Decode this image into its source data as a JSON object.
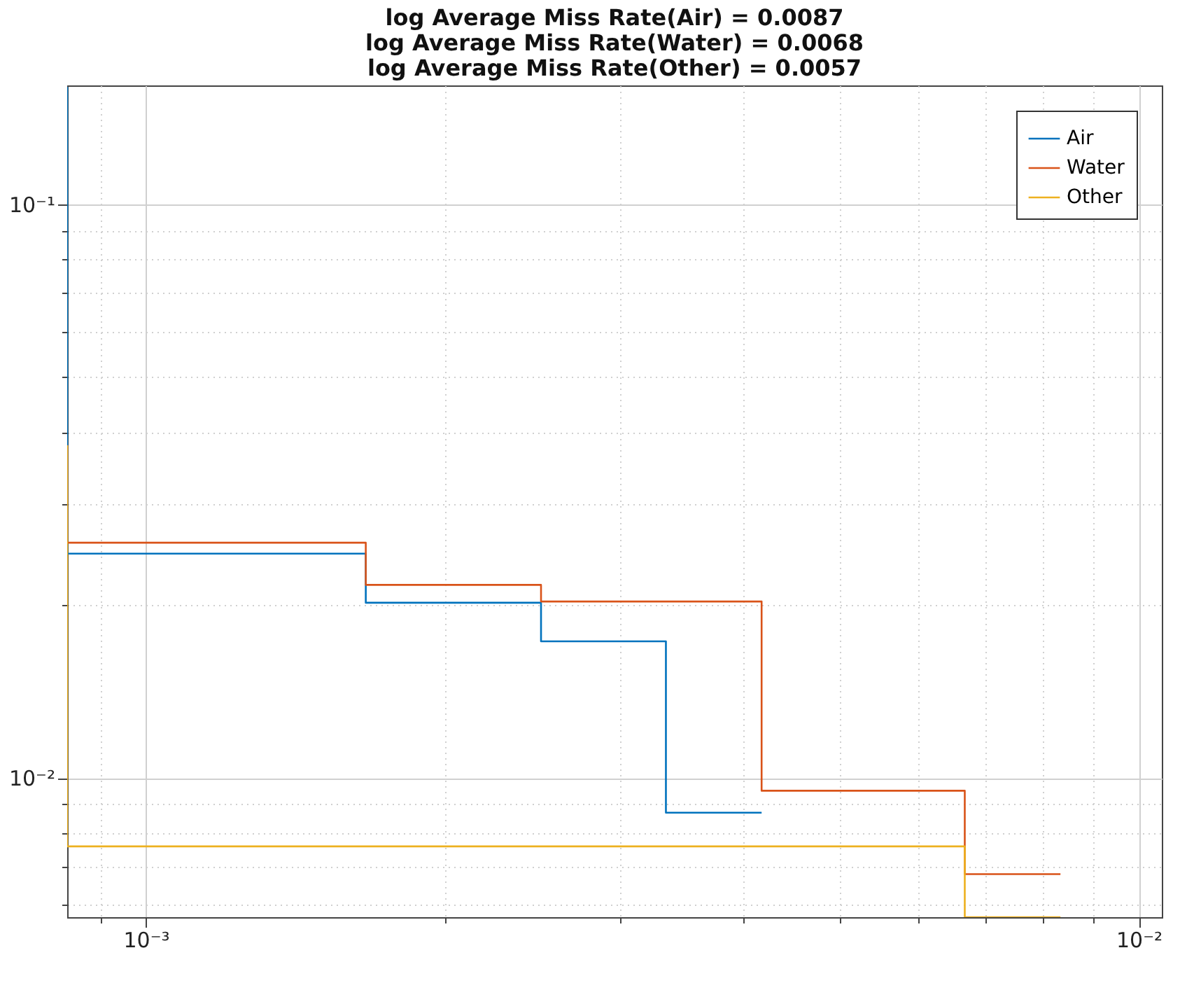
{
  "chart_data": {
    "type": "step",
    "title": [
      "log Average Miss Rate(Air) = 0.0087",
      "log Average Miss Rate(Water) = 0.0068",
      "log Average Miss Rate(Other) = 0.0057"
    ],
    "log": "xy",
    "grid": true,
    "legend": "top right",
    "xlim": [
      0.000833,
      0.01055
    ],
    "ylim": [
      0.00572,
      0.161
    ],
    "xticks": [
      {
        "value": 0.0009,
        "label": null
      },
      {
        "value": 0.001,
        "label": "10⁻³"
      },
      {
        "value": 0.002,
        "label": null
      },
      {
        "value": 0.003,
        "label": null
      },
      {
        "value": 0.004,
        "label": null
      },
      {
        "value": 0.005,
        "label": null
      },
      {
        "value": 0.006,
        "label": null
      },
      {
        "value": 0.007,
        "label": null
      },
      {
        "value": 0.008,
        "label": null
      },
      {
        "value": 0.009,
        "label": null
      },
      {
        "value": 0.01,
        "label": "10⁻²"
      }
    ],
    "yticks": [
      {
        "value": 0.006,
        "label": null
      },
      {
        "value": 0.007,
        "label": null
      },
      {
        "value": 0.008,
        "label": null
      },
      {
        "value": 0.009,
        "label": null
      },
      {
        "value": 0.01,
        "label": "10⁻²"
      },
      {
        "value": 0.02,
        "label": null
      },
      {
        "value": 0.03,
        "label": null
      },
      {
        "value": 0.04,
        "label": null
      },
      {
        "value": 0.05,
        "label": null
      },
      {
        "value": 0.06,
        "label": null
      },
      {
        "value": 0.07,
        "label": null
      },
      {
        "value": 0.08,
        "label": null
      },
      {
        "value": 0.09,
        "label": null
      },
      {
        "value": 0.1,
        "label": "10⁻¹"
      }
    ],
    "series": [
      {
        "name": "Air",
        "color": "#0072bd",
        "x": [
          0.000833,
          0.001665,
          0.0025,
          0.00334,
          0.00417
        ],
        "values": [
          0.16,
          0.0246,
          0.0202,
          0.0173,
          0.0087
        ]
      },
      {
        "name": "Water",
        "color": "#d95319",
        "x": [
          0.000833,
          0.001665,
          0.0025,
          0.00417,
          0.00668,
          0.00834
        ],
        "values": [
          0.038,
          0.0257,
          0.0217,
          0.0203,
          0.0095,
          0.0068
        ]
      },
      {
        "name": "Other",
        "color": "#edb120",
        "x": [
          0.000833,
          0.00668,
          0.00834
        ],
        "values": [
          0.038,
          0.0076,
          0.00572
        ]
      }
    ]
  }
}
